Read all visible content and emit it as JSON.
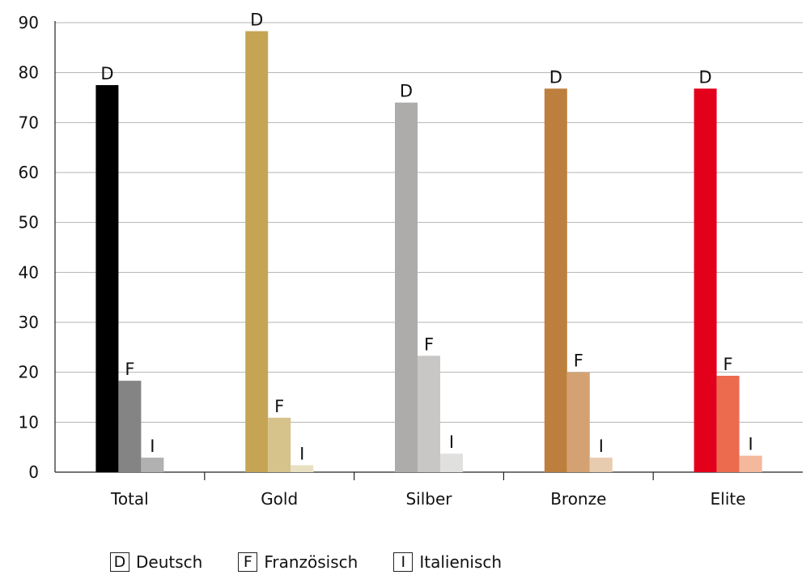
{
  "chart_data": {
    "type": "bar",
    "categories": [
      "Total",
      "Gold",
      "Silber",
      "Bronze",
      "Elite"
    ],
    "series": [
      {
        "name": "Deutsch",
        "key": "D",
        "values": [
          77.5,
          88.3,
          74,
          76.8,
          76.8
        ]
      },
      {
        "name": "Französisch",
        "key": "F",
        "values": [
          18.3,
          10.9,
          23.3,
          20,
          19.3
        ]
      },
      {
        "name": "Italienisch",
        "key": "I",
        "values": [
          2.9,
          1.4,
          3.7,
          2.9,
          3.3
        ]
      }
    ],
    "colors": [
      [
        "#000000",
        "#848484",
        "#b1b1b1"
      ],
      [
        "#c5a553",
        "#d6c28b",
        "#e8e0c1"
      ],
      [
        "#adacaa",
        "#c8c7c5",
        "#e0e0df"
      ],
      [
        "#bd7f3d",
        "#d4a272",
        "#e8ccb0"
      ],
      [
        "#e3001b",
        "#ec6a4e",
        "#f4b89d"
      ]
    ],
    "yticks": [
      0,
      10,
      20,
      30,
      40,
      50,
      60,
      70,
      80,
      90
    ],
    "ylim": [
      0,
      90
    ],
    "grid": true,
    "legend_position": "bottom-left",
    "title": "",
    "xlabel": "",
    "ylabel": ""
  }
}
